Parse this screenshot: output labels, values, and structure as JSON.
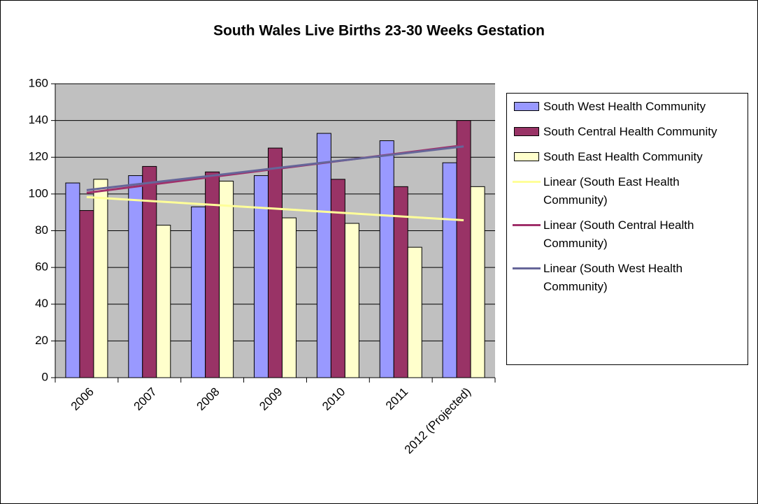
{
  "chart_data": {
    "type": "bar",
    "title": "South Wales Live Births 23-30 Weeks Gestation",
    "categories": [
      "2006",
      "2007",
      "2008",
      "2009",
      "2010",
      "2011",
      "2012 (Projected)"
    ],
    "series": [
      {
        "name": "South West Health Community",
        "color": "#9999ff",
        "values": [
          106,
          110,
          93,
          110,
          133,
          129,
          117
        ]
      },
      {
        "name": "South Central Health Community",
        "color": "#993366",
        "values": [
          91,
          115,
          112,
          125,
          108,
          104,
          140
        ]
      },
      {
        "name": "South East Health Community",
        "color": "#ffffcc",
        "values": [
          108,
          83,
          107,
          87,
          84,
          71,
          104
        ]
      }
    ],
    "trendlines": [
      {
        "name": "Linear (South East Health Community)",
        "color": "#ffff99",
        "values": [
          98.3,
          96.2,
          94.1,
          92.0,
          89.9,
          87.8,
          85.7
        ]
      },
      {
        "name": "Linear (South Central Health Community)",
        "color": "#a0306a",
        "values": [
          100.6,
          105.0,
          109.3,
          113.6,
          117.9,
          122.2,
          126.5
        ]
      },
      {
        "name": "Linear (South West Health Community)",
        "color": "#666699",
        "values": [
          102.1,
          106.1,
          110.0,
          114.0,
          118.0,
          121.9,
          125.9
        ]
      }
    ],
    "ylim": [
      0,
      160
    ],
    "yticks": [
      0,
      20,
      40,
      60,
      80,
      100,
      120,
      140,
      160
    ],
    "grid": true,
    "plot_background": "#c0c0c0",
    "legend": "right"
  }
}
